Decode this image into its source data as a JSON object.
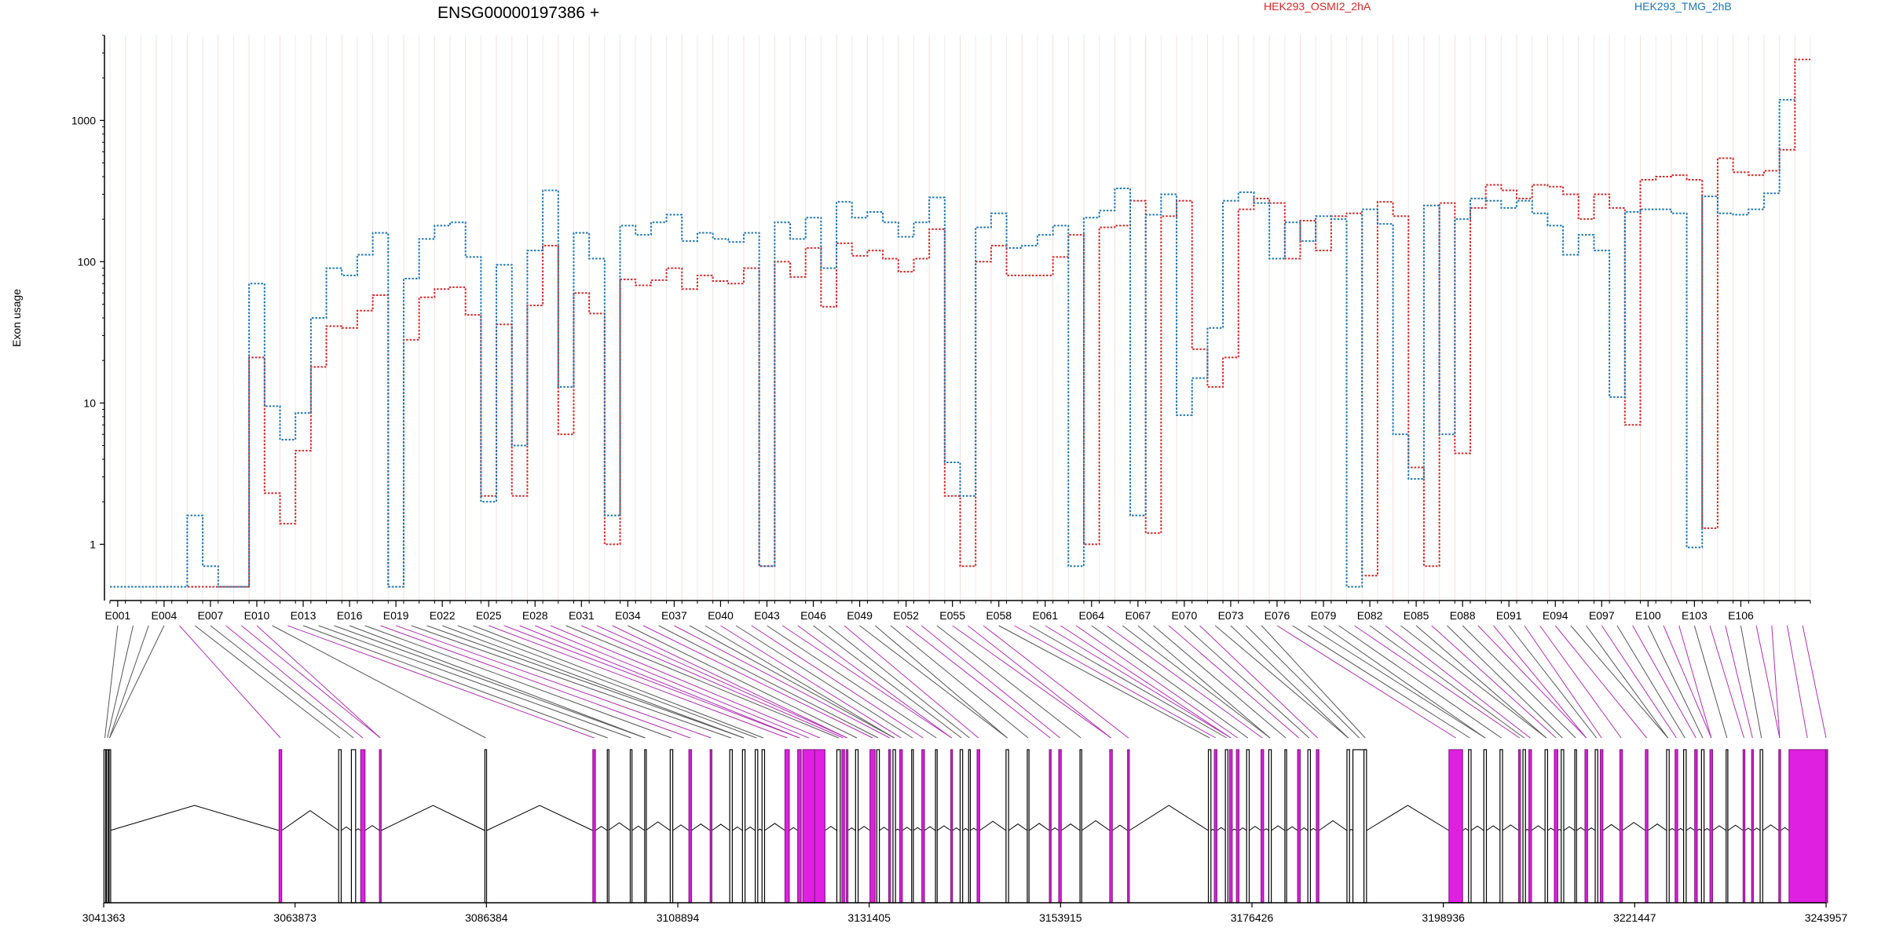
{
  "chart_data": {
    "type": "line",
    "title": "ENSG00000197386 +",
    "ylabel": "Exon usage",
    "xlabel": "",
    "yscale": "log",
    "ylim": [
      0.4,
      4000
    ],
    "yticks": [
      1,
      10,
      100,
      1000
    ],
    "ytick_labels": [
      "1",
      "10",
      "100",
      "1000"
    ],
    "grid": true,
    "legend_position": "top-right",
    "colors": {
      "HEK293_OSMI2_2hA": "#d62728",
      "HEK293_TMG_2hB": "#1f77b4",
      "exon_plain": "#000000",
      "exon_highlight": "#e020e0"
    },
    "exon_labels": [
      "E001",
      "E004",
      "E007",
      "E010",
      "E013",
      "E016",
      "E019",
      "E022",
      "E025",
      "E028",
      "E031",
      "E034",
      "E037",
      "E040",
      "E043",
      "E046",
      "E049",
      "E052",
      "E055",
      "E058",
      "E061",
      "E064",
      "E067",
      "E070",
      "E073",
      "E076",
      "E079",
      "E082",
      "E085",
      "E088",
      "E091",
      "E094",
      "E097",
      "E100",
      "E103",
      "E106"
    ],
    "series": [
      {
        "name": "HEK293_OSMI2_2hA",
        "values": [
          0.5,
          0.5,
          0.5,
          0.5,
          0.5,
          0.5,
          0.5,
          0.5,
          0.5,
          21,
          2.3,
          1.4,
          4.6,
          18,
          35,
          34,
          45,
          58,
          0.5,
          28,
          56,
          64,
          66,
          42,
          2.2,
          36,
          2.2,
          49,
          130,
          6,
          60,
          43,
          1,
          75,
          68,
          74,
          90,
          64,
          80,
          73,
          70,
          90,
          0.7,
          100,
          78,
          125,
          48,
          135,
          110,
          120,
          105,
          85,
          105,
          170,
          2.2,
          0.7,
          100,
          130,
          80,
          80,
          80,
          108,
          155,
          1,
          175,
          180,
          270,
          1.2,
          210,
          270,
          24,
          13,
          21,
          235,
          280,
          260,
          105,
          195,
          120,
          210,
          220,
          0.6,
          265,
          210,
          3.5,
          0.7,
          260,
          4.4,
          240,
          350,
          320,
          280,
          350,
          340,
          300,
          200,
          300,
          240,
          7,
          380,
          400,
          410,
          380,
          1.3,
          540,
          430,
          410,
          440,
          620,
          2700
        ]
      },
      {
        "name": "HEK293_TMG_2hB",
        "values": [
          0.5,
          0.5,
          0.5,
          0.5,
          0.5,
          1.6,
          0.7,
          0.5,
          0.5,
          70,
          9.5,
          5.5,
          8.5,
          40,
          90,
          80,
          112,
          160,
          0.5,
          76,
          145,
          180,
          190,
          108,
          2,
          95,
          5,
          120,
          320,
          13,
          160,
          105,
          1.6,
          180,
          155,
          190,
          215,
          140,
          160,
          145,
          138,
          160,
          0.7,
          190,
          145,
          205,
          90,
          265,
          205,
          225,
          190,
          150,
          190,
          285,
          3.8,
          2.2,
          175,
          220,
          125,
          130,
          155,
          180,
          0.7,
          205,
          230,
          330,
          1.6,
          215,
          300,
          8.2,
          15,
          34,
          270,
          310,
          260,
          105,
          190,
          140,
          210,
          200,
          0.5,
          235,
          185,
          6,
          2.9,
          250,
          6,
          200,
          280,
          270,
          240,
          270,
          220,
          180,
          112,
          155,
          120,
          11,
          225,
          235,
          235,
          220,
          0.95,
          290,
          220,
          215,
          235,
          305,
          1400
        ]
      }
    ],
    "genomic_axis": {
      "tick_labels": [
        "3041363",
        "3063873",
        "3086384",
        "3108894",
        "3131405",
        "3153915",
        "3176426",
        "3198936",
        "3221447",
        "3243957"
      ],
      "range": [
        3041363,
        3243957
      ],
      "exon_starts": [
        3041400,
        3041700,
        3042000,
        3062000,
        3069000,
        3070500,
        3071600,
        3073800,
        3086200,
        3098900,
        3100600,
        3103300,
        3105000,
        3108000,
        3110200,
        3112700,
        3115000,
        3116500,
        3118000,
        3118800,
        3121500,
        3123000,
        3123600,
        3125000,
        3127600,
        3128200,
        3128700,
        3129800,
        3131500,
        3132300,
        3133700,
        3134200,
        3135000,
        3136400,
        3137600,
        3139200,
        3141000,
        3142100,
        3143100,
        3144100,
        3147500,
        3150000,
        3152600,
        3153700,
        3156200,
        3159700,
        3161800,
        3171300,
        3172000,
        3173300,
        3173800,
        3174600,
        3175800,
        3177500,
        3178400,
        3180300,
        3181800,
        3183000,
        3184000,
        3187600,
        3188300,
        3189600,
        3199600,
        3201900,
        3203700,
        3205600,
        3207800,
        3208300,
        3209000,
        3210900,
        3212000,
        3212800,
        3214400,
        3215600,
        3216800,
        3217400,
        3219700,
        3222700,
        3225200,
        3226200,
        3227200,
        3228500,
        3229300,
        3230300,
        3232200,
        3234200,
        3235200,
        3236200,
        3238400,
        3239600,
        3243957
      ],
      "exon_ends": [
        3041600,
        3041900,
        3042100,
        3062300,
        3069300,
        3071000,
        3072100,
        3074000,
        3086400,
        3099200,
        3100700,
        3103500,
        3105100,
        3108300,
        3110500,
        3112900,
        3115300,
        3116800,
        3118300,
        3119100,
        3122000,
        3123400,
        3125000,
        3126200,
        3128000,
        3128500,
        3128900,
        3130100,
        3132100,
        3132600,
        3133900,
        3134500,
        3135300,
        3136600,
        3137900,
        3139400,
        3141200,
        3142400,
        3143300,
        3144400,
        3147800,
        3150200,
        3152800,
        3154000,
        3156400,
        3160000,
        3162000,
        3171600,
        3172300,
        3173600,
        3174100,
        3174900,
        3176100,
        3177800,
        3178700,
        3180500,
        3182100,
        3183300,
        3184300,
        3187900,
        3189800,
        3189900,
        3201200,
        3202200,
        3204000,
        3205900,
        3208000,
        3208600,
        3209300,
        3211200,
        3212400,
        3213100,
        3214600,
        3215900,
        3217100,
        3217700,
        3220000,
        3223000,
        3225500,
        3226500,
        3227500,
        3228800,
        3229600,
        3230600,
        3232400,
        3234400,
        3235400,
        3236500,
        3238600,
        3243900,
        3243957
      ],
      "exon_highlight": [
        false,
        false,
        false,
        true,
        false,
        false,
        true,
        true,
        false,
        true,
        false,
        false,
        false,
        false,
        true,
        true,
        false,
        false,
        false,
        false,
        true,
        true,
        true,
        true,
        false,
        true,
        true,
        false,
        true,
        false,
        true,
        false,
        true,
        false,
        true,
        false,
        true,
        false,
        false,
        true,
        false,
        false,
        true,
        true,
        false,
        true,
        true,
        false,
        true,
        false,
        true,
        true,
        false,
        true,
        false,
        false,
        true,
        false,
        true,
        false,
        false,
        false,
        true,
        false,
        false,
        false,
        true,
        false,
        true,
        false,
        true,
        false,
        false,
        true,
        false,
        true,
        true,
        true,
        false,
        true,
        false,
        true,
        false,
        true,
        false,
        true,
        true,
        false,
        true,
        true,
        true
      ]
    }
  }
}
